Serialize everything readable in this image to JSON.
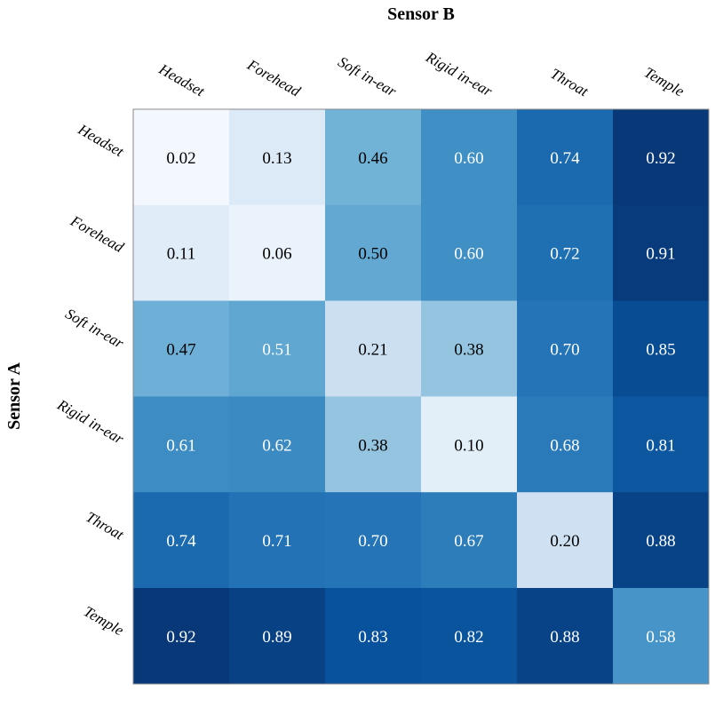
{
  "chart_data": {
    "type": "heatmap",
    "title": "",
    "xlabel": "Sensor B",
    "ylabel": "Sensor A",
    "x_categories": [
      "Headset",
      "Forehead",
      "Soft in-ear",
      "Rigid in-ear",
      "Throat",
      "Temple"
    ],
    "y_categories": [
      "Headset",
      "Forehead",
      "Soft in-ear",
      "Rigid in-ear",
      "Throat",
      "Temple"
    ],
    "values": [
      [
        0.02,
        0.13,
        0.46,
        0.6,
        0.74,
        0.92
      ],
      [
        0.11,
        0.06,
        0.5,
        0.6,
        0.72,
        0.91
      ],
      [
        0.47,
        0.51,
        0.21,
        0.38,
        0.7,
        0.85
      ],
      [
        0.61,
        0.62,
        0.38,
        0.1,
        0.68,
        0.81
      ],
      [
        0.74,
        0.71,
        0.7,
        0.67,
        0.2,
        0.88
      ],
      [
        0.92,
        0.89,
        0.83,
        0.82,
        0.88,
        0.58
      ]
    ],
    "value_range": [
      0,
      0.95
    ],
    "colormap": "Blues",
    "colorbar": false,
    "grid": false
  }
}
